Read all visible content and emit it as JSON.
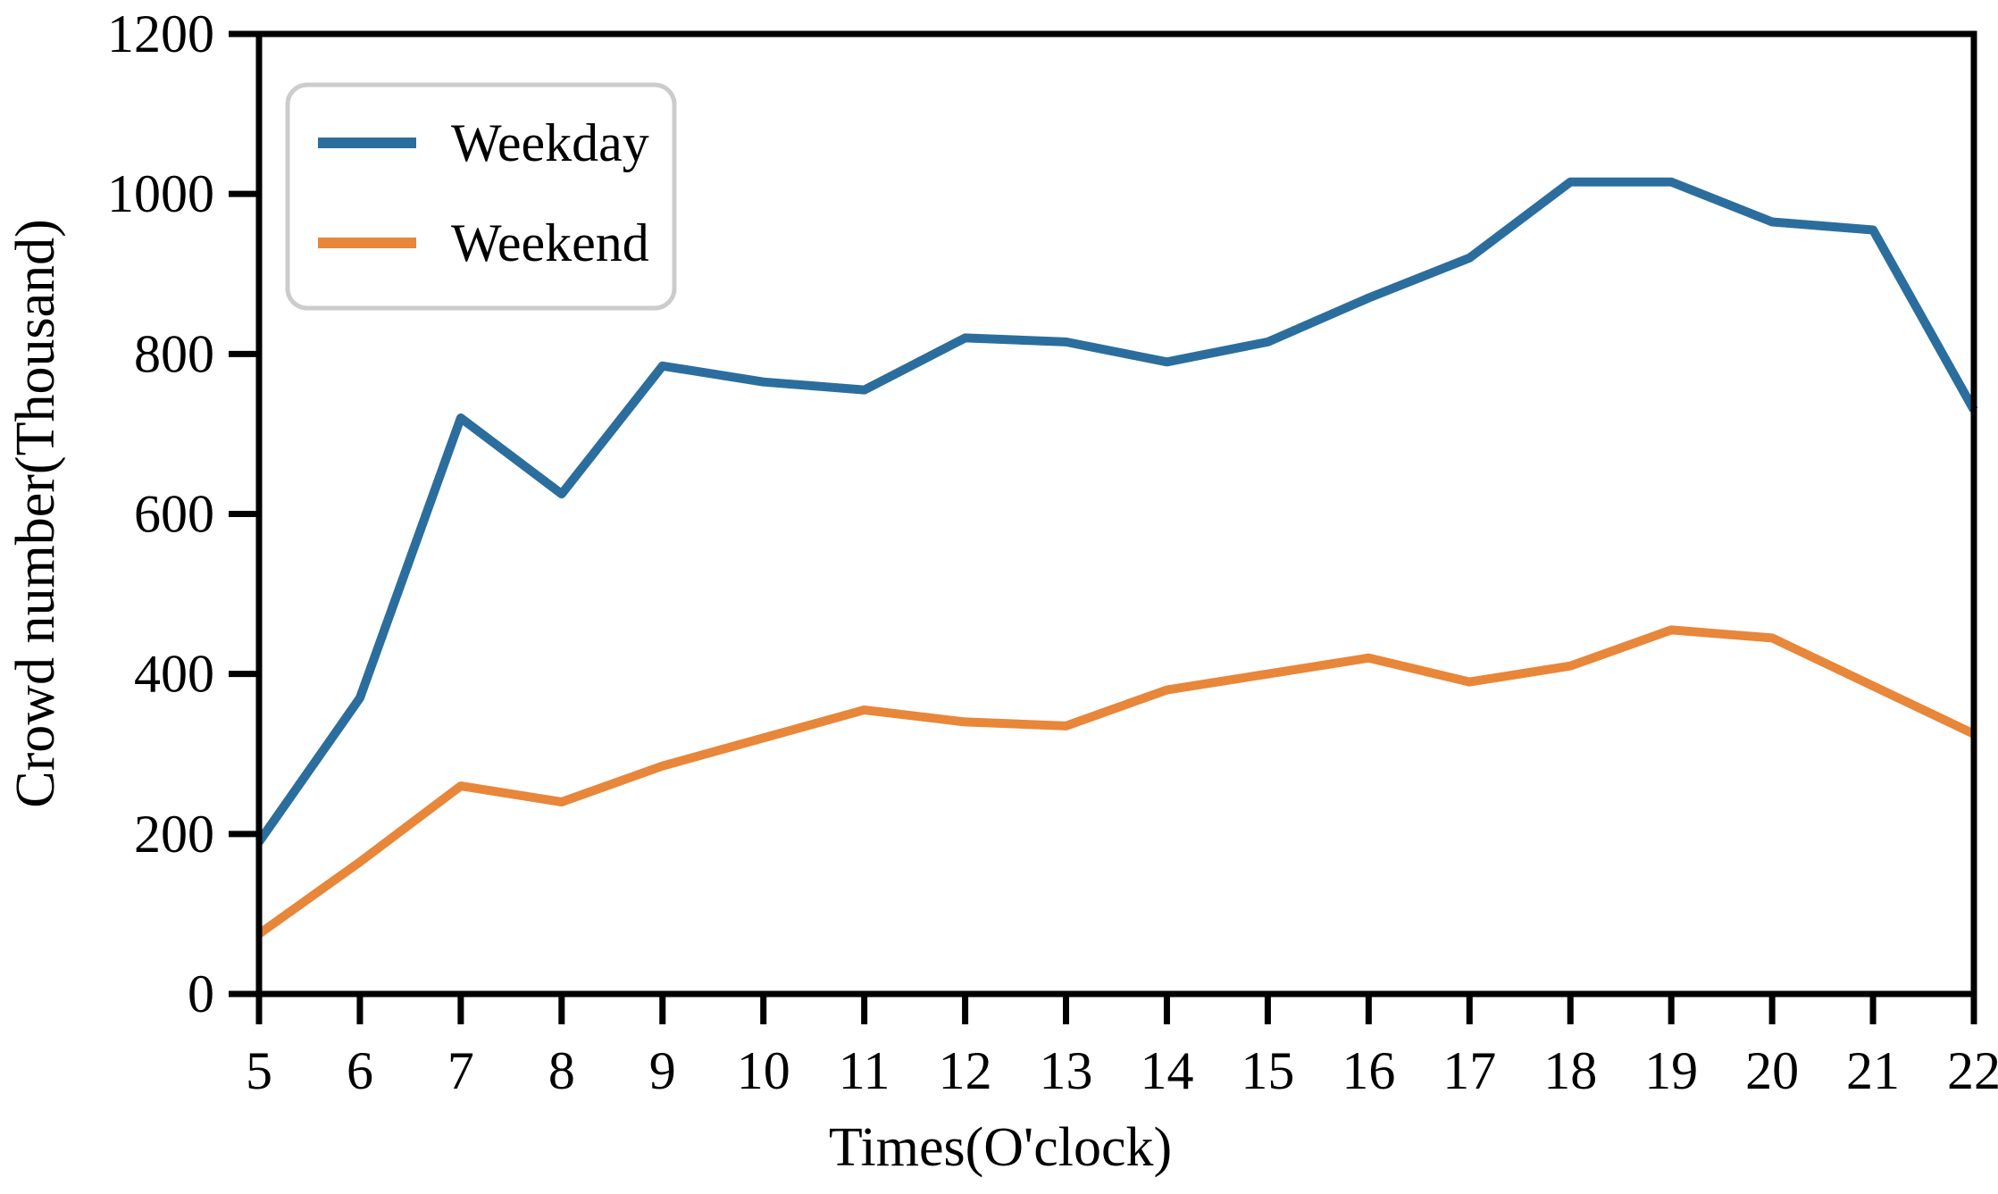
{
  "figure": {
    "background": "#ffffff",
    "axis_color": "#000000"
  },
  "chart_data": {
    "type": "line",
    "title": "",
    "xlabel": "Times(O'clock)",
    "ylabel": "Crowd number(Thousand)",
    "x": [
      5,
      6,
      7,
      8,
      9,
      10,
      11,
      12,
      13,
      14,
      15,
      16,
      17,
      18,
      19,
      20,
      21,
      22
    ],
    "series": [
      {
        "name": "Weekday",
        "color": "#2b6e9e",
        "values": [
          190,
          370,
          720,
          625,
          785,
          765,
          755,
          820,
          815,
          790,
          815,
          870,
          920,
          1015,
          1015,
          965,
          955,
          730
        ]
      },
      {
        "name": "Weekend",
        "color": "#e8863a",
        "values": [
          75,
          165,
          260,
          240,
          285,
          320,
          355,
          340,
          335,
          380,
          400,
          420,
          390,
          410,
          455,
          445,
          385,
          325
        ]
      }
    ],
    "xlim": [
      5,
      22
    ],
    "ylim": [
      0,
      1200
    ],
    "xticks": [
      5,
      6,
      7,
      8,
      9,
      10,
      11,
      12,
      13,
      14,
      15,
      16,
      17,
      18,
      19,
      20,
      21,
      22
    ],
    "yticks": [
      0,
      200,
      400,
      600,
      800,
      1000,
      1200
    ],
    "grid": false,
    "legend_position": "upper-left",
    "legend": [
      "Weekday",
      "Weekend"
    ]
  }
}
